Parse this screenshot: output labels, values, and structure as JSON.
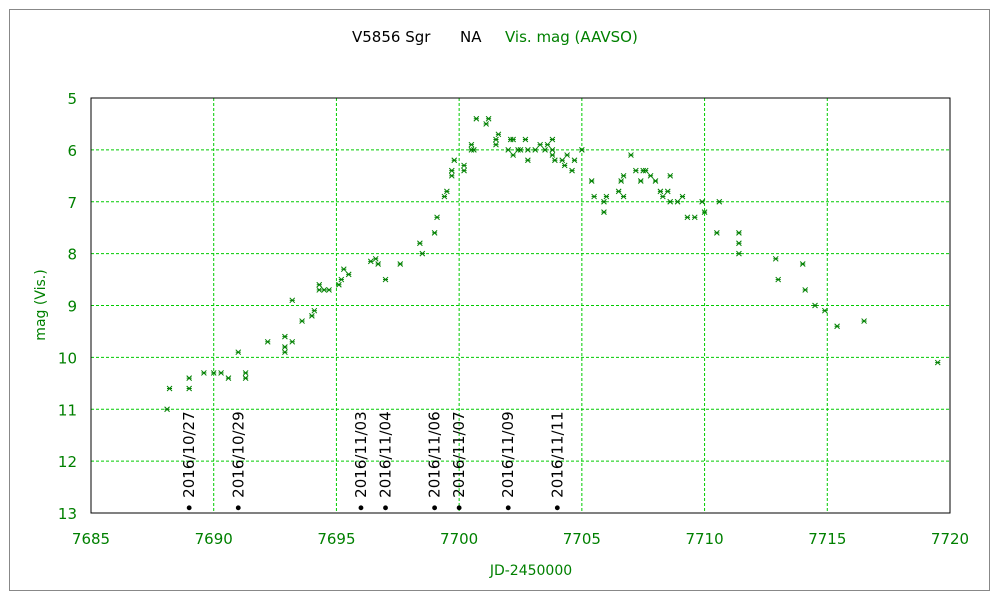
{
  "chart_data": {
    "type": "scatter",
    "title": {
      "object": "V5856 Sgr",
      "tag": "NA",
      "series_label": "Vis. mag (AAVSO)"
    },
    "xlabel": "JD-2450000",
    "ylabel": "mag (Vis.)",
    "xlim": [
      7685,
      7720
    ],
    "ylim": [
      13,
      5
    ],
    "y_inverted": true,
    "grid": true,
    "xticks": [
      "7685",
      "7690",
      "7695",
      "7700",
      "7705",
      "7710",
      "7715",
      "7720"
    ],
    "yticks": [
      "5",
      "6",
      "7",
      "8",
      "9",
      "10",
      "11",
      "12",
      "13"
    ],
    "series": [
      {
        "marker": "x",
        "points": [
          [
            7688.1,
            11.0
          ],
          [
            7688.2,
            10.6
          ],
          [
            7689.0,
            10.6
          ],
          [
            7689.0,
            10.4
          ],
          [
            7689.6,
            10.3
          ],
          [
            7690.0,
            10.3
          ],
          [
            7690.3,
            10.3
          ],
          [
            7690.6,
            10.4
          ],
          [
            7691.0,
            9.9
          ],
          [
            7691.3,
            10.3
          ],
          [
            7691.3,
            10.4
          ],
          [
            7692.2,
            9.7
          ],
          [
            7692.9,
            9.6
          ],
          [
            7692.9,
            9.8
          ],
          [
            7692.9,
            9.9
          ],
          [
            7693.2,
            9.7
          ],
          [
            7693.2,
            8.9
          ],
          [
            7693.6,
            9.3
          ],
          [
            7694.0,
            9.2
          ],
          [
            7694.1,
            9.1
          ],
          [
            7694.3,
            8.6
          ],
          [
            7694.3,
            8.7
          ],
          [
            7694.5,
            8.7
          ],
          [
            7694.7,
            8.7
          ],
          [
            7695.1,
            8.6
          ],
          [
            7695.2,
            8.5
          ],
          [
            7695.3,
            8.3
          ],
          [
            7695.5,
            8.4
          ],
          [
            7696.4,
            8.15
          ],
          [
            7696.6,
            8.1
          ],
          [
            7696.7,
            8.2
          ],
          [
            7697.0,
            8.5
          ],
          [
            7697.6,
            8.2
          ],
          [
            7698.4,
            7.8
          ],
          [
            7698.5,
            8.0
          ],
          [
            7699.0,
            7.6
          ],
          [
            7699.1,
            7.3
          ],
          [
            7699.4,
            6.9
          ],
          [
            7699.5,
            6.8
          ],
          [
            7699.7,
            6.5
          ],
          [
            7699.7,
            6.4
          ],
          [
            7699.8,
            6.2
          ],
          [
            7700.2,
            6.4
          ],
          [
            7700.2,
            6.3
          ],
          [
            7700.5,
            6.0
          ],
          [
            7700.5,
            5.9
          ],
          [
            7700.6,
            6.0
          ],
          [
            7700.7,
            5.4
          ],
          [
            7701.1,
            5.5
          ],
          [
            7701.2,
            5.4
          ],
          [
            7701.5,
            5.8
          ],
          [
            7701.5,
            5.9
          ],
          [
            7701.6,
            5.7
          ],
          [
            7702.0,
            6.0
          ],
          [
            7702.1,
            5.8
          ],
          [
            7702.2,
            6.1
          ],
          [
            7702.2,
            5.8
          ],
          [
            7702.4,
            6.0
          ],
          [
            7702.5,
            6.0
          ],
          [
            7702.7,
            5.8
          ],
          [
            7702.8,
            6.0
          ],
          [
            7702.8,
            6.2
          ],
          [
            7703.1,
            6.0
          ],
          [
            7703.3,
            5.9
          ],
          [
            7703.5,
            6.0
          ],
          [
            7703.6,
            5.9
          ],
          [
            7703.8,
            6.0
          ],
          [
            7703.8,
            5.8
          ],
          [
            7703.8,
            6.1
          ],
          [
            7703.9,
            6.2
          ],
          [
            7704.2,
            6.2
          ],
          [
            7704.3,
            6.3
          ],
          [
            7704.4,
            6.1
          ],
          [
            7704.6,
            6.4
          ],
          [
            7704.7,
            6.2
          ],
          [
            7705.0,
            6.0
          ],
          [
            7705.4,
            6.6
          ],
          [
            7705.5,
            6.9
          ],
          [
            7705.9,
            7.0
          ],
          [
            7705.9,
            7.2
          ],
          [
            7706.0,
            6.9
          ],
          [
            7706.5,
            6.8
          ],
          [
            7706.6,
            6.6
          ],
          [
            7706.7,
            6.5
          ],
          [
            7706.7,
            6.9
          ],
          [
            7707.0,
            6.1
          ],
          [
            7707.2,
            6.4
          ],
          [
            7707.4,
            6.6
          ],
          [
            7707.5,
            6.4
          ],
          [
            7707.6,
            6.4
          ],
          [
            7707.8,
            6.5
          ],
          [
            7708.0,
            6.6
          ],
          [
            7708.2,
            6.8
          ],
          [
            7708.3,
            6.9
          ],
          [
            7708.5,
            6.8
          ],
          [
            7708.6,
            6.5
          ],
          [
            7708.6,
            7.0
          ],
          [
            7708.9,
            7.0
          ],
          [
            7709.1,
            6.9
          ],
          [
            7709.3,
            7.3
          ],
          [
            7709.6,
            7.3
          ],
          [
            7709.9,
            7.0
          ],
          [
            7710.0,
            7.2
          ],
          [
            7710.5,
            7.6
          ],
          [
            7710.6,
            7.0
          ],
          [
            7711.4,
            7.6
          ],
          [
            7711.4,
            7.8
          ],
          [
            7711.4,
            8.0
          ],
          [
            7712.9,
            8.1
          ],
          [
            7713.0,
            8.5
          ],
          [
            7714.0,
            8.2
          ],
          [
            7714.1,
            8.7
          ],
          [
            7714.5,
            9.0
          ],
          [
            7714.9,
            9.1
          ],
          [
            7715.4,
            9.4
          ],
          [
            7716.5,
            9.3
          ],
          [
            7719.5,
            10.1
          ]
        ]
      }
    ],
    "date_markers": [
      {
        "x": 7689.0,
        "label": "2016/10/27"
      },
      {
        "x": 7691.0,
        "label": "2016/10/29"
      },
      {
        "x": 7696.0,
        "label": "2016/11/03"
      },
      {
        "x": 7697.0,
        "label": "2016/11/04"
      },
      {
        "x": 7699.0,
        "label": "2016/11/06"
      },
      {
        "x": 7700.0,
        "label": "2016/11/07"
      },
      {
        "x": 7702.0,
        "label": "2016/11/09"
      },
      {
        "x": 7704.0,
        "label": "2016/11/11"
      }
    ],
    "marker_mag": 12.9
  },
  "colors": {
    "series": "#008000",
    "grid": "#00cc00",
    "axis_text": "#008000",
    "title_text": "#000000",
    "frame": "#888888"
  }
}
